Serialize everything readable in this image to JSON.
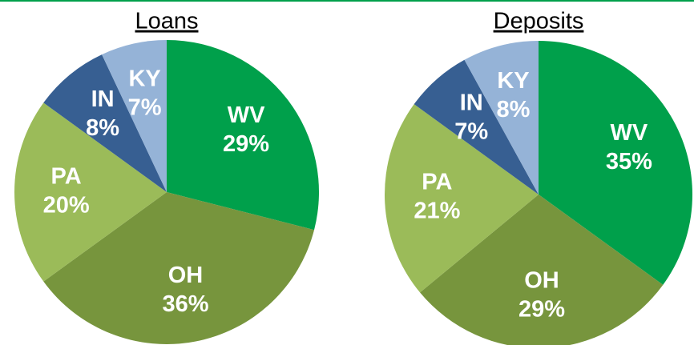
{
  "chart_data": [
    {
      "type": "pie",
      "title": "Loans",
      "categories": [
        "WV",
        "OH",
        "PA",
        "IN",
        "KY"
      ],
      "values": [
        29,
        36,
        20,
        8,
        7
      ],
      "value_labels": [
        "29%",
        "36%",
        "20%",
        "8%",
        "7%"
      ],
      "colors": [
        "#00a04b",
        "#77953d",
        "#9bbb59",
        "#375f92",
        "#95b3d7"
      ]
    },
    {
      "type": "pie",
      "title": "Deposits",
      "categories": [
        "WV",
        "OH",
        "PA",
        "IN",
        "KY"
      ],
      "values": [
        35,
        29,
        21,
        7,
        8
      ],
      "value_labels": [
        "35%",
        "29%",
        "21%",
        "7%",
        "8%"
      ],
      "colors": [
        "#00a04b",
        "#77953d",
        "#9bbb59",
        "#375f92",
        "#95b3d7"
      ]
    }
  ]
}
